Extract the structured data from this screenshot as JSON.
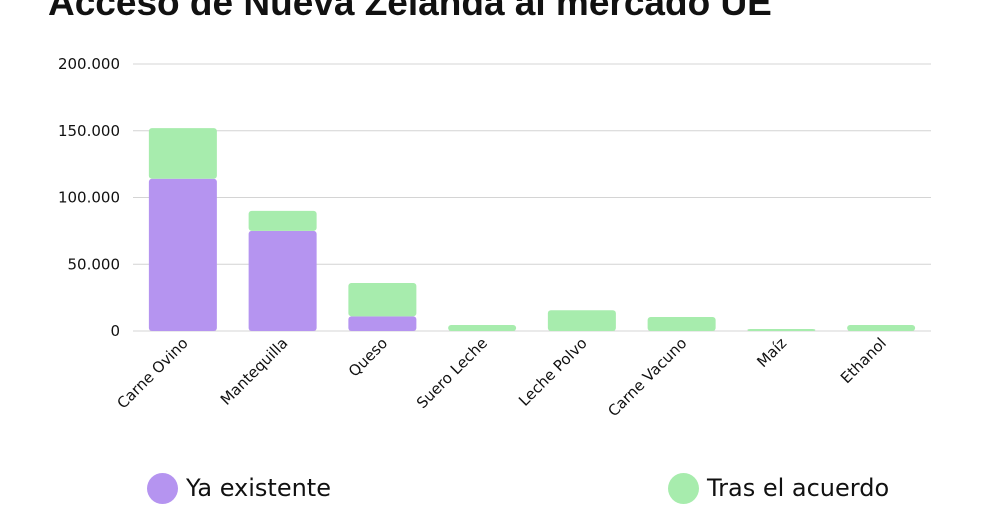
{
  "chart_data": {
    "type": "bar",
    "stacked": true,
    "title": "Acceso de Nueva Zelanda al mercado UE",
    "xlabel": "",
    "ylabel": "",
    "categories": [
      "Carne Ovino",
      "Mantequilla",
      "Queso",
      "Suero Leche",
      "Leche Polvo",
      "Carne Vacuno",
      "Maíz",
      "Ethanol"
    ],
    "series": [
      {
        "name": "Ya existente",
        "color": "#b594f0",
        "values": [
          114000,
          75000,
          11000,
          0,
          0,
          0,
          0,
          0
        ]
      },
      {
        "name": "Tras el acuerdo",
        "color": "#a7ecad",
        "values": [
          38000,
          15000,
          25000,
          4500,
          15500,
          10500,
          1500,
          4500
        ]
      }
    ],
    "ylim": [
      0,
      200000
    ],
    "yticks": [
      0,
      50000,
      100000,
      150000,
      200000
    ],
    "ytick_labels": [
      "0",
      "50.000",
      "100.000",
      "150.000",
      "200.000"
    ],
    "grid": true,
    "legend_position": "bottom"
  }
}
